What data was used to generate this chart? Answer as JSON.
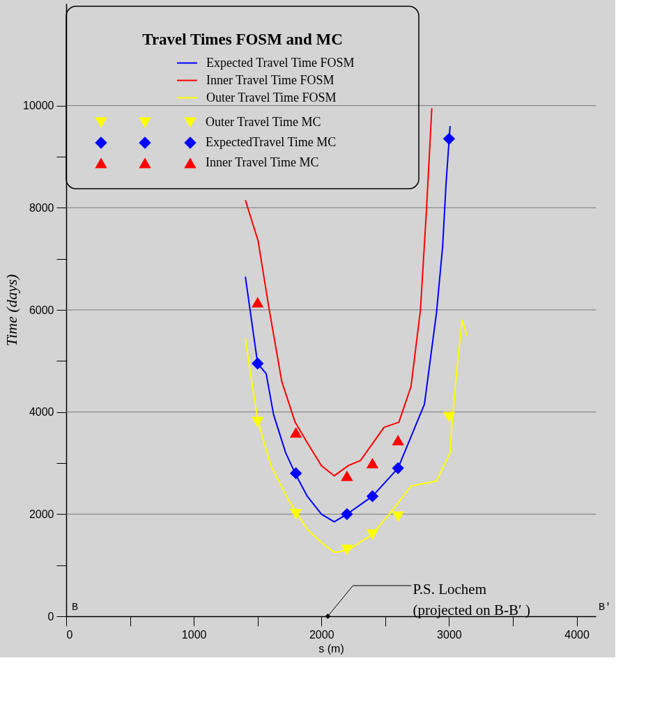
{
  "chart_data": {
    "type": "line",
    "legend_title": "Travel Times FOSM and MC",
    "xlabel": "s (m)",
    "ylabel": "Time (days)",
    "xlim": [
      0,
      4150
    ],
    "ylim": [
      0,
      12000
    ],
    "xticks": [
      0,
      {
        "value": 500,
        "label": null
      },
      1000,
      {
        "value": 1500,
        "label": null
      },
      2000,
      {
        "value": 2500,
        "label": null
      },
      3000,
      {
        "value": 3500,
        "label": null
      },
      4000
    ],
    "yticks": [
      0,
      {
        "value": 1000,
        "label": null
      },
      2000,
      {
        "value": 3000,
        "label": null
      },
      4000,
      {
        "value": 5000,
        "label": null
      },
      6000,
      {
        "value": 7000,
        "label": null
      },
      8000,
      {
        "value": 9000,
        "label": null
      },
      10000
    ],
    "grid": "y",
    "legend": "top left",
    "series": [
      {
        "name": "Expected Travel Time FOSM",
        "marker": "none",
        "line_style": "solid",
        "color": "#0000ff",
        "x": [
          1404,
          1500,
          1567,
          1625,
          1720,
          1794,
          1889,
          2000,
          2100,
          2200,
          2400,
          2600,
          2807,
          2902,
          2950,
          2976,
          3008
        ],
        "values": [
          6650,
          4950,
          4750,
          3950,
          3200,
          2800,
          2350,
          2000,
          1850,
          2000,
          2350,
          2900,
          4150,
          5950,
          7250,
          8450,
          9600
        ]
      },
      {
        "name": "Inner Travel Time FOSM",
        "marker": "none",
        "line_style": "solid",
        "color": "#ff0000",
        "x": [
          1404,
          1504,
          1588,
          1689,
          1794,
          1889,
          2000,
          2100,
          2211,
          2306,
          2491,
          2607,
          2702,
          2776,
          2823,
          2865
        ],
        "values": [
          8150,
          7350,
          6050,
          4600,
          3800,
          3400,
          2950,
          2750,
          2950,
          3050,
          3700,
          3800,
          4500,
          6000,
          7950,
          9950
        ]
      },
      {
        "name": "Outer Travel Time FOSM",
        "marker": "none",
        "line_style": "solid",
        "color": "#ffff00",
        "x": [
          1404,
          1435,
          1504,
          1604,
          1736,
          1889,
          2021,
          2105,
          2211,
          2396,
          2549,
          2702,
          2902,
          3008,
          3024,
          3066,
          3103,
          3140
        ],
        "values": [
          5450,
          4900,
          3800,
          2950,
          2300,
          1700,
          1400,
          1250,
          1300,
          1600,
          2050,
          2550,
          2650,
          3200,
          3800,
          4950,
          5800,
          5500
        ]
      },
      {
        "name": "Outer Travel Time MC",
        "type": "scatter",
        "marker": "triangle_down",
        "color": "#ffff00",
        "x": [
          1500,
          1800,
          2200,
          2400,
          2600,
          3000
        ],
        "values": [
          3800,
          2000,
          1300,
          1600,
          1950,
          3900
        ]
      },
      {
        "name": "ExpectedTravel Time MC",
        "type": "scatter",
        "marker": "diamond",
        "color": "#0000ff",
        "x": [
          1500,
          1800,
          2200,
          2400,
          2600,
          3000
        ],
        "values": [
          4950,
          2800,
          2000,
          2350,
          2900,
          9350
        ]
      },
      {
        "name": "Inner Travel Time MC",
        "type": "scatter",
        "marker": "triangle",
        "color": "#ff0000",
        "x": [
          1500,
          1800,
          2200,
          2400,
          2600
        ],
        "values": [
          6150,
          3600,
          2750,
          3000,
          3450
        ]
      }
    ],
    "annotations": [
      {
        "text": "P.S. Lochem\n(projected on B-B′ )",
        "x": 2050,
        "y": 0
      },
      "B",
      "B'"
    ]
  }
}
